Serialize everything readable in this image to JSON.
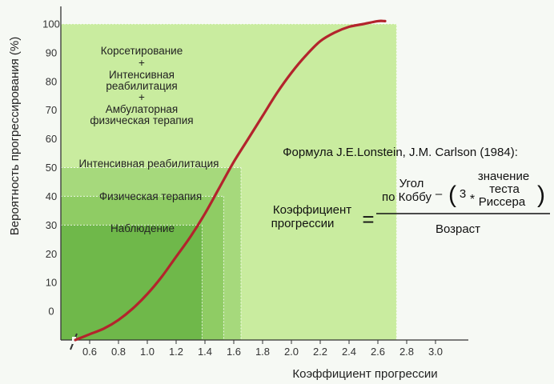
{
  "chart_data": {
    "type": "line",
    "xlabel": "Коэффициент прогрессии",
    "ylabel": "Вероятность прогрессирования (%)",
    "xlim": [
      0.4,
      3.2
    ],
    "ylim": [
      -10,
      105
    ],
    "x_ticks": [
      "0.6",
      "0.8",
      "1.0",
      "1.2",
      "1.4",
      "1.6",
      "1.8",
      "2.0",
      "2.2",
      "2.4",
      "2.6",
      "2.8",
      "3.0"
    ],
    "y_ticks": [
      "0",
      "10",
      "20",
      "30",
      "40",
      "50",
      "60",
      "70",
      "80",
      "90",
      "100"
    ],
    "series": [
      {
        "x": [
          0.5,
          0.6,
          0.7,
          0.8,
          0.9,
          1.0,
          1.1,
          1.2,
          1.3,
          1.4,
          1.5,
          1.6,
          1.7,
          1.8,
          1.9,
          2.0,
          2.1,
          2.2,
          2.3,
          2.4,
          2.5,
          2.6,
          2.65
        ],
        "y": [
          -10,
          -8,
          -6,
          -3,
          1,
          6,
          12,
          19,
          26,
          34,
          43,
          52,
          60,
          68,
          76,
          83,
          89,
          94,
          97,
          99,
          100,
          101,
          101
        ],
        "color": "#b3242c"
      }
    ],
    "regions": [
      {
        "label": "Наблюдение",
        "x_end": 1.38,
        "y_top": 30,
        "color": "#6fb84a"
      },
      {
        "label": "Физическая терапия",
        "x_end": 1.53,
        "y_top": 40,
        "color": "#8fcc64"
      },
      {
        "label": "Интенсивная реабилитация",
        "x_end": 1.65,
        "y_top": 50,
        "color": "#a6d97c"
      },
      {
        "label_lines": [
          "Корсетирование",
          "+",
          "Интенсивная",
          "реабилитация",
          "+",
          "Амбулаторная",
          "физическая терапия"
        ],
        "x_end": 2.73,
        "y_top": 100,
        "color": "#c9ec9f"
      }
    ]
  },
  "formula": {
    "title": "Формула J.E.Lonstein, J.M. Carlson (1984):",
    "lhs_line1": "Коэффициент",
    "lhs_line2": "прогрессии",
    "equals": "=",
    "num_line1": "Угол",
    "num_line2": "по Коббу",
    "minus": "–",
    "paren_open": "(",
    "three": "3",
    "star": "*",
    "test_line1": "значение",
    "test_line2": "теста",
    "test_line3": "Риссера",
    "paren_close": ")",
    "denominator": "Возраст"
  },
  "colors": {
    "background": "#f6f9f4",
    "curve": "#b3242c",
    "axis": "#333333"
  }
}
